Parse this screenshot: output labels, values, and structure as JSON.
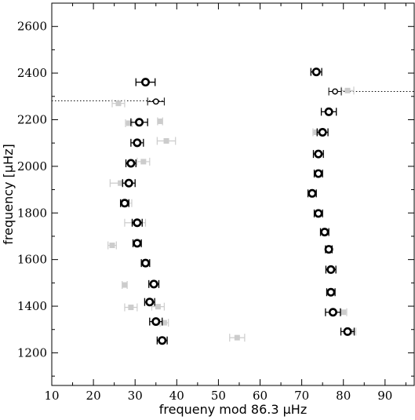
{
  "chart_data": {
    "type": "scatter",
    "title": "",
    "xlabel": "frequeny mod 86.3 μHz",
    "ylabel": "frequency [μHz]",
    "xlim": [
      10,
      97
    ],
    "ylim": [
      1060,
      2700
    ],
    "xticks": [
      10,
      20,
      30,
      40,
      50,
      60,
      70,
      80,
      90
    ],
    "yticks": [
      1200,
      1400,
      1600,
      1800,
      2000,
      2200,
      2400,
      2600
    ],
    "grid": false,
    "legend": "none",
    "series": [
      {
        "kind": "primary",
        "color": "#000000",
        "points": [
          {
            "x": 36.5,
            "y": 1253,
            "xerr": 1.2
          },
          {
            "x": 35.0,
            "y": 1334,
            "xerr": 1.5
          },
          {
            "x": 33.5,
            "y": 1418,
            "xerr": 1.2
          },
          {
            "x": 34.5,
            "y": 1495,
            "xerr": 1.2
          },
          {
            "x": 32.5,
            "y": 1585,
            "xerr": 1.0
          },
          {
            "x": 30.5,
            "y": 1670,
            "xerr": 1.0
          },
          {
            "x": 30.5,
            "y": 1758,
            "xerr": 1.2
          },
          {
            "x": 27.5,
            "y": 1842,
            "xerr": 1.0
          },
          {
            "x": 28.5,
            "y": 1928,
            "xerr": 1.5
          },
          {
            "x": 29.0,
            "y": 2013,
            "xerr": 1.2
          },
          {
            "x": 30.5,
            "y": 2101,
            "xerr": 1.5
          },
          {
            "x": 31.0,
            "y": 2189,
            "xerr": 2.0
          },
          {
            "x": 32.5,
            "y": 2361,
            "xerr": 2.3
          },
          {
            "x": 81.0,
            "y": 1291,
            "xerr": 1.6
          },
          {
            "x": 77.5,
            "y": 1374,
            "xerr": 1.8
          },
          {
            "x": 77.0,
            "y": 1460,
            "xerr": 1.0
          },
          {
            "x": 77.0,
            "y": 1557,
            "xerr": 1.2
          },
          {
            "x": 76.5,
            "y": 1644,
            "xerr": 0.8
          },
          {
            "x": 75.5,
            "y": 1718,
            "xerr": 1.0
          },
          {
            "x": 74.0,
            "y": 1798,
            "xerr": 1.0
          },
          {
            "x": 72.5,
            "y": 1884,
            "xerr": 1.0
          },
          {
            "x": 74.0,
            "y": 1969,
            "xerr": 1.0
          },
          {
            "x": 74.0,
            "y": 2053,
            "xerr": 1.2
          },
          {
            "x": 75.0,
            "y": 2146,
            "xerr": 1.3
          },
          {
            "x": 76.5,
            "y": 2234,
            "xerr": 1.8
          },
          {
            "x": 73.5,
            "y": 2405,
            "xerr": 1.3
          }
        ]
      },
      {
        "kind": "primary-open",
        "color": "#000000",
        "points": [
          {
            "x": 35.0,
            "y": 2278,
            "xerr": 2.0
          },
          {
            "x": 78.0,
            "y": 2321,
            "xerr": 1.5
          }
        ]
      },
      {
        "kind": "secondary",
        "color": "#cccccc",
        "points": [
          {
            "x": 54.5,
            "y": 1265,
            "xerr": 1.8
          },
          {
            "x": 37.0,
            "y": 1329,
            "xerr": 1.0
          },
          {
            "x": 29.0,
            "y": 1395,
            "xerr": 1.5
          },
          {
            "x": 35.5,
            "y": 1398,
            "xerr": 1.5
          },
          {
            "x": 27.5,
            "y": 1491,
            "xerr": 0.6
          },
          {
            "x": 24.5,
            "y": 1661,
            "xerr": 1.0
          },
          {
            "x": 30.0,
            "y": 1758,
            "xerr": 2.5
          },
          {
            "x": 28.0,
            "y": 1842,
            "xerr": 1.2
          },
          {
            "x": 26.5,
            "y": 1928,
            "xerr": 2.5
          },
          {
            "x": 32.0,
            "y": 2020,
            "xerr": 1.5
          },
          {
            "x": 37.5,
            "y": 2109,
            "xerr": 2.2
          },
          {
            "x": 28.5,
            "y": 2185,
            "xerr": 0.8
          },
          {
            "x": 36.0,
            "y": 2193,
            "xerr": 0.6
          },
          {
            "x": 26.0,
            "y": 2270,
            "xerr": 1.5
          },
          {
            "x": 81.0,
            "y": 2325,
            "xerr": 1.5
          },
          {
            "x": 80.0,
            "y": 1374,
            "xerr": 0.8
          },
          {
            "x": 82.0,
            "y": 1291,
            "xerr": 1.0
          },
          {
            "x": 73.5,
            "y": 2146,
            "xerr": 0.8
          }
        ]
      }
    ],
    "reference_lines": [
      {
        "y": 2281,
        "from_x": 10,
        "to_x": 37
      },
      {
        "y": 2321,
        "from_x": 77,
        "to_x": 97
      }
    ]
  }
}
